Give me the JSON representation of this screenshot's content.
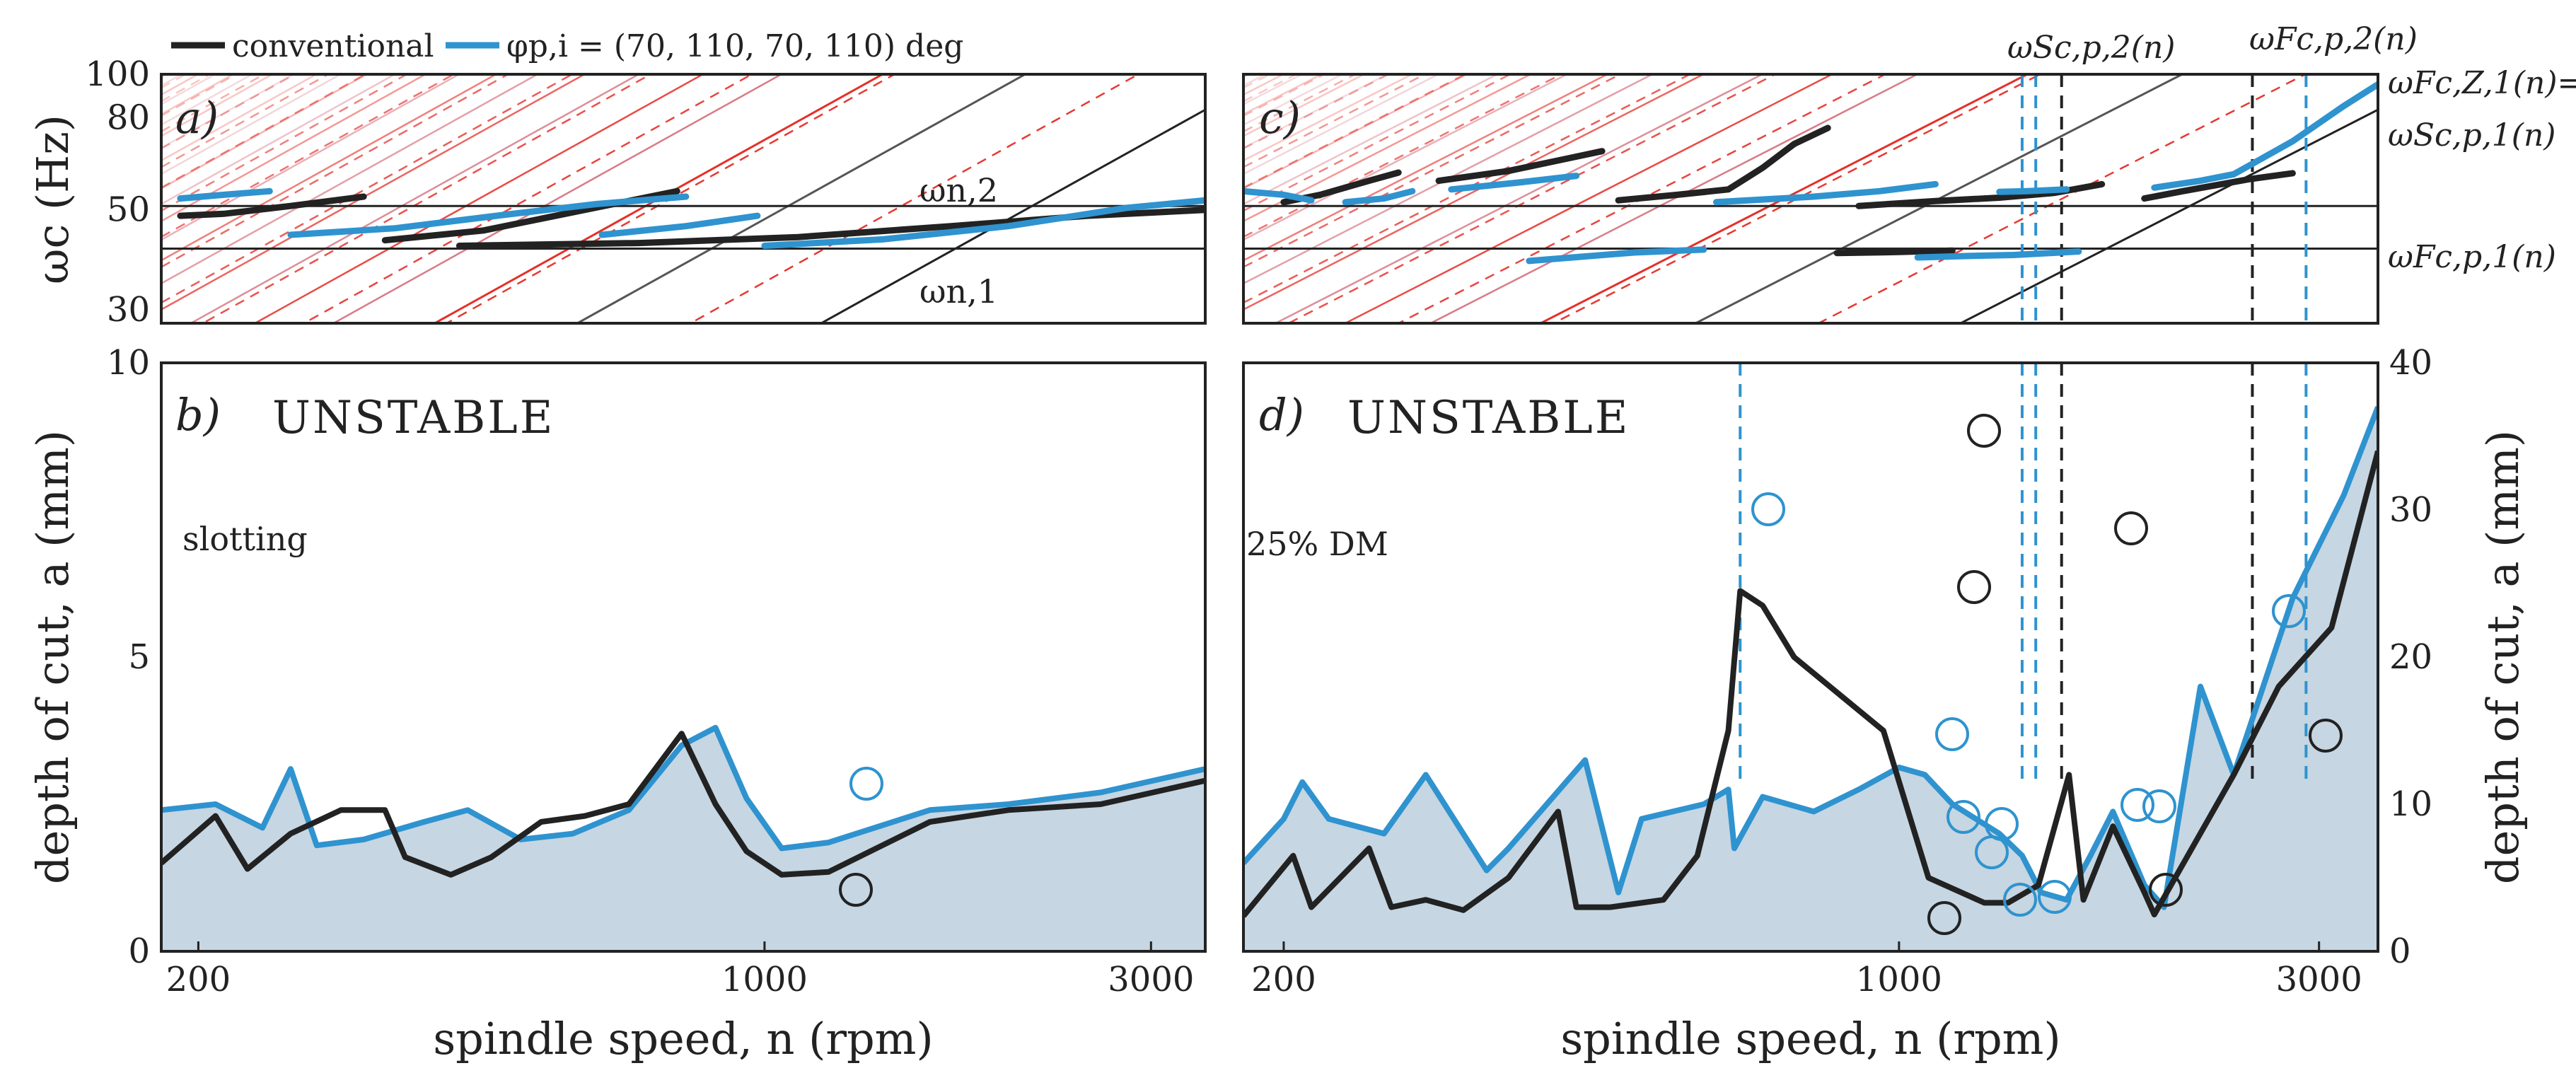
{
  "colors": {
    "conventional": "#222222",
    "variable": "#2f93cf",
    "unstable_fill": "#c6d6e2",
    "harmonic_primary": "#e3231c",
    "harmonic_dashed": "#e3231c"
  },
  "legend": {
    "conventional": "conventional",
    "variable": "φp,i = (70, 110, 70, 110) deg"
  },
  "axes": {
    "x_title": "spindle speed, n (rpm)",
    "x_ticks": [
      "200",
      "1000",
      "3000"
    ],
    "y_top_title": "ωc (Hz)",
    "y_top_ticks": [
      "100",
      "80",
      "50",
      "30"
    ],
    "y_bottom_left_title": "depth of cut, a (mm)",
    "y_bottom_left_ticks": [
      "10",
      "5",
      "0"
    ],
    "y_bottom_right_title": "depth of cut, a (mm)",
    "y_bottom_right_ticks": [
      "40",
      "30",
      "20",
      "10",
      "0"
    ]
  },
  "panels": {
    "a": {
      "label": "a)",
      "mode_upper": "ωn,2",
      "mode_lower": "ωn,1"
    },
    "b": {
      "label": "b)",
      "region": "UNSTABLE",
      "note": "slotting"
    },
    "c": {
      "label": "c)",
      "annot_s_p2": "ωSc,p,2(n)",
      "annot_f_p2": "ωFc,p,2(n)",
      "annot_f_z1_line1": "ωFc,Z,1(n)=",
      "annot_f_z1_line2": "ωSc,p,1(n)",
      "annot_f_p1": "ωFc,p,1(n)"
    },
    "d": {
      "label": "d)",
      "region": "UNSTABLE",
      "note": "25% DM"
    }
  },
  "chart_data": [
    {
      "panel": "a",
      "type": "line",
      "title": "",
      "xlabel": "spindle speed, n (rpm)",
      "ylabel": "ωc (Hz)",
      "x_scale": "log",
      "xlim": [
        180,
        3500
      ],
      "ylim": [
        28,
        100
      ],
      "mode_frequencies_hz": [
        41,
        51
      ],
      "series": [
        {
          "name": "conventional",
          "segments": [
            {
              "x": [
                190,
                215,
                260,
                320
              ],
              "y": [
                48.5,
                49,
                51,
                53.5
              ]
            },
            {
              "x": [
                340,
                450,
                600,
                780
              ],
              "y": [
                42.8,
                45,
                50,
                55
              ]
            },
            {
              "x": [
                420,
                700,
                1100,
                1700,
                2500,
                3500
              ],
              "y": [
                41.6,
                42.2,
                43.5,
                46,
                48.5,
                50
              ]
            }
          ]
        },
        {
          "name": "variable",
          "segments": [
            {
              "x": [
                190,
                215,
                245
              ],
              "y": [
                53,
                54,
                55
              ]
            },
            {
              "x": [
                260,
                350,
                480,
                620,
                800
              ],
              "y": [
                44,
                45.5,
                48.8,
                51.5,
                53.5
              ]
            },
            {
              "x": [
                630,
                800,
                980
              ],
              "y": [
                44,
                46,
                48.5
              ]
            },
            {
              "x": [
                1000,
                1400,
                2000,
                2800,
                3500
              ],
              "y": [
                41.6,
                43,
                46,
                50.5,
                52.5
              ]
            }
          ]
        }
      ]
    },
    {
      "panel": "b",
      "type": "line",
      "title": "",
      "xlabel": "spindle speed, n (rpm)",
      "ylabel": "depth of cut, a (mm)",
      "x_scale": "log",
      "xlim": [
        180,
        3500
      ],
      "ylim": [
        0,
        10
      ],
      "series": [
        {
          "name": "conventional",
          "x": [
            180,
            210,
            230,
            260,
            300,
            340,
            360,
            410,
            460,
            530,
            600,
            680,
            790,
            870,
            950,
            1050,
            1200,
            1600,
            2000,
            2600,
            3500
          ],
          "y": [
            1.5,
            2.3,
            1.4,
            2.0,
            2.4,
            2.4,
            1.6,
            1.3,
            1.6,
            2.2,
            2.3,
            2.5,
            3.7,
            2.5,
            1.7,
            1.3,
            1.35,
            2.2,
            2.4,
            2.5,
            2.9
          ]
        },
        {
          "name": "variable",
          "x": [
            180,
            210,
            240,
            260,
            280,
            320,
            380,
            430,
            500,
            580,
            680,
            790,
            870,
            950,
            1050,
            1200,
            1600,
            2000,
            2600,
            3500
          ],
          "y": [
            2.4,
            2.5,
            2.1,
            3.1,
            1.8,
            1.9,
            2.2,
            2.4,
            1.9,
            2.0,
            2.4,
            3.5,
            3.8,
            2.6,
            1.75,
            1.85,
            2.4,
            2.5,
            2.7,
            3.1
          ]
        }
      ]
    },
    {
      "panel": "c",
      "type": "line",
      "title": "",
      "xlabel": "spindle speed, n (rpm)",
      "ylabel": "ωc (Hz)",
      "x_scale": "log",
      "xlim": [
        180,
        3500
      ],
      "ylim": [
        28,
        100
      ],
      "mode_frequencies_hz": [
        41,
        51
      ],
      "series": [
        {
          "name": "conventional",
          "segments": [
            {
              "x": [
                200,
                220,
                250,
                270
              ],
              "y": [
                52,
                54,
                58,
                60.5
              ]
            },
            {
              "x": [
                300,
                360,
                420,
                460
              ],
              "y": [
                58,
                61,
                65,
                67.5
              ]
            },
            {
              "x": [
                480,
                560,
                640,
                700,
                760,
                830
              ],
              "y": [
                52.5,
                54,
                55.5,
                62,
                70,
                76
              ]
            },
            {
              "x": [
                900,
                1100,
                1300,
                1500,
                1700
              ],
              "y": [
                51,
                52.3,
                53.2,
                54.5,
                57
              ]
            },
            {
              "x": [
                850,
                1000,
                1150
              ],
              "y": [
                40.1,
                40.3,
                40.6
              ]
            },
            {
              "x": [
                1900,
                2100,
                2500,
                2800
              ],
              "y": [
                53,
                55,
                58.5,
                60.3
              ]
            }
          ]
        },
        {
          "name": "variable",
          "segments": [
            {
              "x": [
                180,
                200,
                215
              ],
              "y": [
                55,
                54,
                52.5
              ]
            },
            {
              "x": [
                235,
                260,
                280
              ],
              "y": [
                52,
                53,
                55
              ]
            },
            {
              "x": [
                310,
                370,
                430
              ],
              "y": [
                55.5,
                57.5,
                59.5
              ]
            },
            {
              "x": [
                620,
                800,
                950,
                1100
              ],
              "y": [
                52,
                53.5,
                55,
                57
              ]
            },
            {
              "x": [
                1300,
                1400,
                1550
              ],
              "y": [
                54.8,
                55,
                55.5
              ]
            },
            {
              "x": [
                1950,
                2200,
                2400
              ],
              "y": [
                56,
                58,
                60
              ]
            },
            {
              "x": [
                2400,
                2800,
                3200,
                3500
              ],
              "y": [
                60,
                71,
                85,
                95
              ]
            },
            {
              "x": [
                380,
                500,
                600
              ],
              "y": [
                38.5,
                40.2,
                40.8
              ]
            },
            {
              "x": [
                1050,
                1200,
                1350,
                1600
              ],
              "y": [
                39.2,
                39.5,
                39.7,
                40.4
              ]
            }
          ]
        }
      ],
      "vertical_lines_rpm": [
        {
          "x": 1380,
          "series": "variable"
        },
        {
          "x": 1430,
          "series": "variable"
        },
        {
          "x": 1530,
          "series": "conventional"
        },
        {
          "x": 2520,
          "series": "conventional"
        },
        {
          "x": 2900,
          "series": "variable"
        }
      ]
    },
    {
      "panel": "d",
      "type": "line",
      "title": "",
      "xlabel": "spindle speed, n (rpm)",
      "ylabel": "depth of cut, a (mm)",
      "x_scale": "log",
      "xlim": [
        180,
        3500
      ],
      "ylim": [
        0,
        40
      ],
      "series": [
        {
          "name": "conventional",
          "x": [
            180,
            205,
            215,
            250,
            265,
            290,
            320,
            360,
            410,
            430,
            470,
            540,
            590,
            640,
            660,
            700,
            760,
            960,
            1080,
            1250,
            1330,
            1440,
            1560,
            1620,
            1750,
            1900,
            1950,
            2400,
            2700,
            3100,
            3500
          ],
          "y": [
            2.4,
            6.5,
            3.0,
            7.0,
            3.0,
            3.5,
            2.8,
            5.0,
            9.5,
            3.0,
            3.0,
            3.5,
            6.5,
            15,
            24.5,
            23.5,
            20,
            15,
            5.0,
            3.3,
            3.3,
            4.5,
            12.0,
            3.5,
            8.5,
            4.0,
            2.5,
            12,
            18,
            22,
            34
          ]
        },
        {
          "name": "variable",
          "x": [
            180,
            200,
            210,
            225,
            260,
            290,
            340,
            360,
            440,
            480,
            510,
            600,
            640,
            650,
            700,
            800,
            900,
            1000,
            1070,
            1150,
            1300,
            1380,
            1450,
            1550,
            1650,
            1750,
            1900,
            2000,
            2200,
            2400,
            2800,
            3200,
            3500
          ],
          "y": [
            6.0,
            9.0,
            11.5,
            9.0,
            8.0,
            12.0,
            5.5,
            7.0,
            13.0,
            4.0,
            9.0,
            10.0,
            11.0,
            7.0,
            10.5,
            9.5,
            11.0,
            12.5,
            12.0,
            10.0,
            8.0,
            6.5,
            4.0,
            3.5,
            6.5,
            9.5,
            4.5,
            3.0,
            18.0,
            12,
            24,
            31,
            37
          ]
        }
      ],
      "vertical_lines_rpm": [
        {
          "x": 660,
          "series": "variable"
        },
        {
          "x": 1380,
          "series": "variable"
        },
        {
          "x": 1430,
          "series": "variable"
        },
        {
          "x": 1530,
          "series": "conventional"
        },
        {
          "x": 2520,
          "series": "conventional"
        },
        {
          "x": 2900,
          "series": "variable"
        }
      ]
    }
  ]
}
